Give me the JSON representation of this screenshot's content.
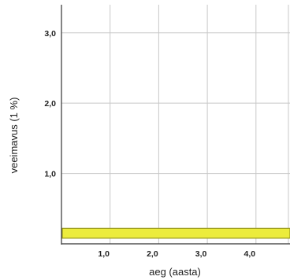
{
  "chart_data": {
    "type": "area",
    "xlabel": "aeg (aasta)",
    "ylabel": "veeimavus (1 %)",
    "x_ticks": [
      "1,0",
      "2,0",
      "3,0",
      "4,0"
    ],
    "y_ticks": [
      "1,0",
      "2,0",
      "3,0"
    ],
    "xlim": [
      0,
      4.7
    ],
    "ylim": [
      0,
      3.4
    ],
    "grid": true,
    "series": [
      {
        "x": [
          0,
          4.7
        ],
        "y_low": [
          0.08,
          0.08
        ],
        "y_high": [
          0.22,
          0.22
        ],
        "color": "#ecec3c"
      }
    ],
    "colors": {
      "band_fill": "#ecec3c",
      "band_edge": "#9a9a20",
      "grid": "#c8c8c8",
      "axis": "#333333"
    }
  }
}
